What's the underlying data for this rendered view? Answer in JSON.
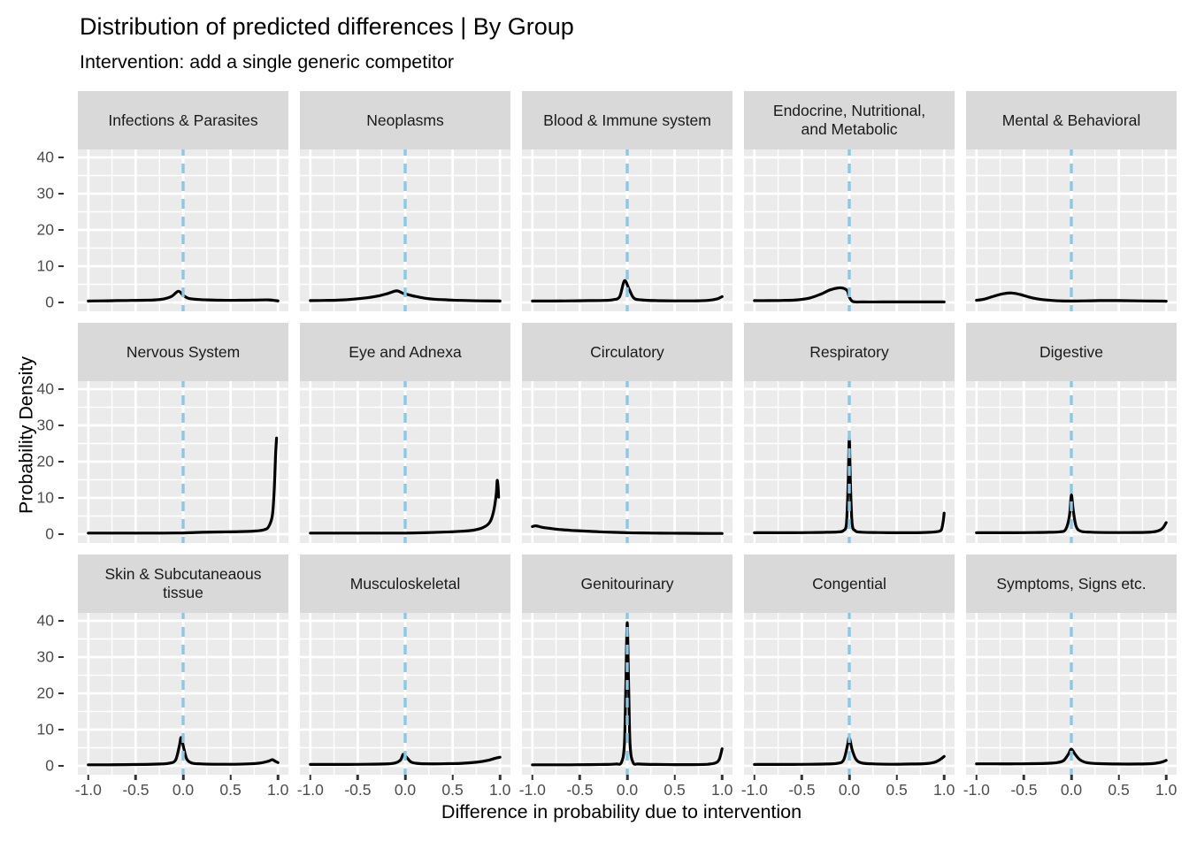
{
  "header": {
    "title": "Distribution of predicted differences | By Group",
    "subtitle": "Intervention: add a single generic competitor"
  },
  "axes": {
    "x_title": "Difference in probability due to intervention",
    "y_title": "Probability Density",
    "x_ticks": [
      {
        "label": "-1.0",
        "value": -1.0
      },
      {
        "label": "-0.5",
        "value": -0.5
      },
      {
        "label": "0.0",
        "value": 0.0
      },
      {
        "label": "0.5",
        "value": 0.5
      },
      {
        "label": "1.0",
        "value": 1.0
      }
    ],
    "y_ticks": [
      {
        "label": "0",
        "value": 0
      },
      {
        "label": "10",
        "value": 10
      },
      {
        "label": "20",
        "value": 20
      },
      {
        "label": "30",
        "value": 30
      },
      {
        "label": "40",
        "value": 40
      }
    ],
    "x_minor": [
      -0.75,
      -0.25,
      0.25,
      0.75
    ],
    "y_minor": [
      5,
      15,
      25,
      35
    ]
  },
  "style": {
    "panel_bg": "#EBEBEB",
    "strip_bg": "#D9D9D9",
    "grid_color": "#FFFFFF",
    "curve_color": "#000000",
    "vline_color": "#8AC8E8",
    "axis_text_color": "#4D4D4D",
    "tick_mark_color": "#333333",
    "strip_text_color": "#1A1A1A"
  },
  "chart_data": {
    "type": "line",
    "kind": "faceted density curves, 3 rows x 5 columns small multiples",
    "title": "Distribution of predicted differences | By Group",
    "subtitle": "Intervention: add a single generic competitor",
    "xlabel": "Difference in probability due to intervention",
    "ylabel": "Probability Density",
    "xlim": [
      -1,
      1
    ],
    "ylim": [
      0,
      40
    ],
    "grid": true,
    "reference_vline_x": 0,
    "facets": [
      {
        "title": "Infections & Parasites",
        "points": [
          [
            -1,
            0.4
          ],
          [
            -0.85,
            0.45
          ],
          [
            -0.7,
            0.5
          ],
          [
            -0.55,
            0.55
          ],
          [
            -0.4,
            0.6
          ],
          [
            -0.3,
            0.7
          ],
          [
            -0.2,
            1.0
          ],
          [
            -0.12,
            1.7
          ],
          [
            -0.05,
            3.1
          ],
          [
            0,
            2.0
          ],
          [
            0.05,
            1.2
          ],
          [
            0.12,
            0.9
          ],
          [
            0.25,
            0.7
          ],
          [
            0.4,
            0.6
          ],
          [
            0.6,
            0.6
          ],
          [
            0.75,
            0.65
          ],
          [
            0.9,
            0.7
          ],
          [
            1,
            0.45
          ]
        ]
      },
      {
        "title": "Neoplasms",
        "points": [
          [
            -1,
            0.5
          ],
          [
            -0.85,
            0.55
          ],
          [
            -0.7,
            0.65
          ],
          [
            -0.55,
            0.9
          ],
          [
            -0.4,
            1.3
          ],
          [
            -0.28,
            1.8
          ],
          [
            -0.18,
            2.5
          ],
          [
            -0.09,
            3.2
          ],
          [
            -0.02,
            2.5
          ],
          [
            0.04,
            2.1
          ],
          [
            0.1,
            1.7
          ],
          [
            0.2,
            1.2
          ],
          [
            0.3,
            0.9
          ],
          [
            0.45,
            0.7
          ],
          [
            0.6,
            0.55
          ],
          [
            0.8,
            0.45
          ],
          [
            1,
            0.4
          ]
        ]
      },
      {
        "title": "Blood & Immune system",
        "points": [
          [
            -1,
            0.4
          ],
          [
            -0.8,
            0.4
          ],
          [
            -0.6,
            0.45
          ],
          [
            -0.4,
            0.5
          ],
          [
            -0.25,
            0.55
          ],
          [
            -0.15,
            0.75
          ],
          [
            -0.08,
            1.6
          ],
          [
            -0.03,
            6.0
          ],
          [
            0.02,
            3.6
          ],
          [
            0.07,
            1.2
          ],
          [
            0.15,
            0.7
          ],
          [
            0.3,
            0.5
          ],
          [
            0.5,
            0.45
          ],
          [
            0.7,
            0.45
          ],
          [
            0.85,
            0.55
          ],
          [
            0.95,
            1.0
          ],
          [
            1,
            1.6
          ]
        ]
      },
      {
        "title": "Endocrine, Nutritional,\nand Metabolic",
        "points": [
          [
            -1,
            0.5
          ],
          [
            -0.85,
            0.5
          ],
          [
            -0.7,
            0.55
          ],
          [
            -0.55,
            0.7
          ],
          [
            -0.42,
            1.2
          ],
          [
            -0.3,
            2.3
          ],
          [
            -0.2,
            3.5
          ],
          [
            -0.12,
            4.0
          ],
          [
            -0.06,
            3.9
          ],
          [
            -0.02,
            3.2
          ],
          [
            0,
            1.5
          ],
          [
            0.04,
            0.25
          ],
          [
            0.15,
            0.15
          ],
          [
            0.35,
            0.15
          ],
          [
            0.6,
            0.15
          ],
          [
            0.8,
            0.15
          ],
          [
            1,
            0.15
          ]
        ]
      },
      {
        "title": "Mental & Behavioral",
        "points": [
          [
            -1,
            0.6
          ],
          [
            -0.92,
            0.9
          ],
          [
            -0.82,
            1.7
          ],
          [
            -0.72,
            2.4
          ],
          [
            -0.63,
            2.6
          ],
          [
            -0.54,
            2.2
          ],
          [
            -0.45,
            1.5
          ],
          [
            -0.36,
            1.0
          ],
          [
            -0.25,
            0.65
          ],
          [
            -0.12,
            0.45
          ],
          [
            0,
            0.4
          ],
          [
            0.15,
            0.45
          ],
          [
            0.3,
            0.5
          ],
          [
            0.5,
            0.5
          ],
          [
            0.7,
            0.45
          ],
          [
            0.85,
            0.4
          ],
          [
            1,
            0.35
          ]
        ]
      },
      {
        "title": "Nervous System",
        "points": [
          [
            -1,
            0.3
          ],
          [
            -0.8,
            0.3
          ],
          [
            -0.6,
            0.3
          ],
          [
            -0.4,
            0.3
          ],
          [
            -0.2,
            0.3
          ],
          [
            0,
            0.35
          ],
          [
            0.2,
            0.5
          ],
          [
            0.4,
            0.6
          ],
          [
            0.6,
            0.7
          ],
          [
            0.75,
            0.85
          ],
          [
            0.85,
            1.2
          ],
          [
            0.9,
            2.0
          ],
          [
            0.94,
            5.0
          ],
          [
            0.96,
            12
          ],
          [
            0.975,
            22
          ],
          [
            0.985,
            26.5
          ]
        ]
      },
      {
        "title": "Eye and Adnexa",
        "points": [
          [
            -1,
            0.3
          ],
          [
            -0.8,
            0.3
          ],
          [
            -0.6,
            0.3
          ],
          [
            -0.4,
            0.3
          ],
          [
            -0.2,
            0.3
          ],
          [
            0,
            0.3
          ],
          [
            0.2,
            0.4
          ],
          [
            0.4,
            0.55
          ],
          [
            0.6,
            0.8
          ],
          [
            0.72,
            1.1
          ],
          [
            0.82,
            1.8
          ],
          [
            0.89,
            3.2
          ],
          [
            0.93,
            6
          ],
          [
            0.96,
            11
          ],
          [
            0.97,
            14.8
          ],
          [
            0.98,
            13
          ],
          [
            0.985,
            10.2
          ]
        ]
      },
      {
        "title": "Circulatory",
        "points": [
          [
            -1,
            2.1
          ],
          [
            -0.96,
            2.3
          ],
          [
            -0.9,
            1.9
          ],
          [
            -0.82,
            1.6
          ],
          [
            -0.72,
            1.3
          ],
          [
            -0.6,
            1.05
          ],
          [
            -0.45,
            0.85
          ],
          [
            -0.3,
            0.65
          ],
          [
            -0.15,
            0.5
          ],
          [
            0,
            0.4
          ],
          [
            0.15,
            0.33
          ],
          [
            0.35,
            0.28
          ],
          [
            0.55,
            0.25
          ],
          [
            0.75,
            0.22
          ],
          [
            0.9,
            0.2
          ],
          [
            1,
            0.2
          ]
        ]
      },
      {
        "title": "Respiratory",
        "points": [
          [
            -1,
            0.4
          ],
          [
            -0.8,
            0.4
          ],
          [
            -0.6,
            0.4
          ],
          [
            -0.4,
            0.45
          ],
          [
            -0.25,
            0.5
          ],
          [
            -0.12,
            0.6
          ],
          [
            -0.06,
            1.0
          ],
          [
            -0.03,
            3
          ],
          [
            -0.012,
            14
          ],
          [
            0,
            26.5
          ],
          [
            0.012,
            14
          ],
          [
            0.03,
            3
          ],
          [
            0.06,
            1.0
          ],
          [
            0.12,
            0.55
          ],
          [
            0.3,
            0.45
          ],
          [
            0.5,
            0.4
          ],
          [
            0.7,
            0.4
          ],
          [
            0.85,
            0.5
          ],
          [
            0.93,
            0.7
          ],
          [
            0.97,
            1.2
          ],
          [
            0.99,
            3.5
          ],
          [
            1,
            5.8
          ]
        ]
      },
      {
        "title": "Digestive",
        "points": [
          [
            -1,
            0.4
          ],
          [
            -0.8,
            0.4
          ],
          [
            -0.6,
            0.4
          ],
          [
            -0.4,
            0.45
          ],
          [
            -0.25,
            0.5
          ],
          [
            -0.12,
            0.65
          ],
          [
            -0.06,
            1.3
          ],
          [
            -0.02,
            5
          ],
          [
            0,
            10.8
          ],
          [
            0.02,
            6.5
          ],
          [
            0.05,
            2.2
          ],
          [
            0.1,
            0.8
          ],
          [
            0.2,
            0.55
          ],
          [
            0.4,
            0.45
          ],
          [
            0.6,
            0.45
          ],
          [
            0.8,
            0.5
          ],
          [
            0.9,
            0.8
          ],
          [
            0.96,
            1.6
          ],
          [
            1,
            3.2
          ]
        ]
      },
      {
        "title": "Skin & Subcutaneaous\ntissue",
        "points": [
          [
            -1,
            0.3
          ],
          [
            -0.8,
            0.3
          ],
          [
            -0.6,
            0.35
          ],
          [
            -0.4,
            0.4
          ],
          [
            -0.25,
            0.5
          ],
          [
            -0.15,
            0.7
          ],
          [
            -0.08,
            1.6
          ],
          [
            -0.04,
            5.5
          ],
          [
            -0.02,
            7.8
          ],
          [
            0.01,
            4.5
          ],
          [
            0.04,
            1.8
          ],
          [
            0.09,
            0.8
          ],
          [
            0.18,
            0.55
          ],
          [
            0.35,
            0.45
          ],
          [
            0.55,
            0.45
          ],
          [
            0.7,
            0.55
          ],
          [
            0.82,
            0.8
          ],
          [
            0.9,
            1.3
          ],
          [
            0.94,
            1.7
          ],
          [
            0.97,
            1.3
          ],
          [
            1,
            0.9
          ]
        ]
      },
      {
        "title": "Musculoskeletal",
        "points": [
          [
            -1,
            0.4
          ],
          [
            -0.8,
            0.4
          ],
          [
            -0.6,
            0.4
          ],
          [
            -0.4,
            0.45
          ],
          [
            -0.25,
            0.5
          ],
          [
            -0.12,
            0.7
          ],
          [
            -0.05,
            1.6
          ],
          [
            -0.02,
            3.2
          ],
          [
            0.02,
            2.2
          ],
          [
            0.06,
            1.1
          ],
          [
            0.12,
            0.7
          ],
          [
            0.25,
            0.55
          ],
          [
            0.45,
            0.6
          ],
          [
            0.6,
            0.7
          ],
          [
            0.75,
            1.0
          ],
          [
            0.87,
            1.5
          ],
          [
            0.95,
            2.1
          ],
          [
            1,
            2.4
          ]
        ]
      },
      {
        "title": "Genitourinary",
        "points": [
          [
            -1,
            0.3
          ],
          [
            -0.8,
            0.3
          ],
          [
            -0.6,
            0.3
          ],
          [
            -0.4,
            0.35
          ],
          [
            -0.25,
            0.4
          ],
          [
            -0.12,
            0.5
          ],
          [
            -0.06,
            1.0
          ],
          [
            -0.03,
            6
          ],
          [
            -0.015,
            22
          ],
          [
            0,
            39.5
          ],
          [
            0.015,
            22
          ],
          [
            0.03,
            6
          ],
          [
            0.06,
            1.0
          ],
          [
            0.12,
            0.5
          ],
          [
            0.3,
            0.4
          ],
          [
            0.5,
            0.35
          ],
          [
            0.7,
            0.35
          ],
          [
            0.85,
            0.45
          ],
          [
            0.93,
            0.8
          ],
          [
            0.97,
            1.8
          ],
          [
            1,
            4.7
          ]
        ]
      },
      {
        "title": "Congential",
        "points": [
          [
            -1,
            0.4
          ],
          [
            -0.8,
            0.4
          ],
          [
            -0.6,
            0.4
          ],
          [
            -0.4,
            0.45
          ],
          [
            -0.25,
            0.5
          ],
          [
            -0.12,
            0.7
          ],
          [
            -0.06,
            1.6
          ],
          [
            -0.02,
            5.5
          ],
          [
            0,
            7.8
          ],
          [
            0.03,
            4.5
          ],
          [
            0.07,
            1.8
          ],
          [
            0.13,
            0.8
          ],
          [
            0.25,
            0.55
          ],
          [
            0.45,
            0.45
          ],
          [
            0.65,
            0.5
          ],
          [
            0.8,
            0.6
          ],
          [
            0.9,
            1.0
          ],
          [
            0.96,
            1.8
          ],
          [
            1,
            2.6
          ]
        ]
      },
      {
        "title": "Symptoms, Signs etc.",
        "points": [
          [
            -1,
            0.55
          ],
          [
            -0.8,
            0.55
          ],
          [
            -0.6,
            0.55
          ],
          [
            -0.4,
            0.6
          ],
          [
            -0.25,
            0.7
          ],
          [
            -0.15,
            0.9
          ],
          [
            -0.08,
            1.5
          ],
          [
            -0.03,
            3.3
          ],
          [
            0,
            4.6
          ],
          [
            0.04,
            3.2
          ],
          [
            0.09,
            1.7
          ],
          [
            0.16,
            0.9
          ],
          [
            0.3,
            0.6
          ],
          [
            0.5,
            0.5
          ],
          [
            0.7,
            0.5
          ],
          [
            0.85,
            0.6
          ],
          [
            0.93,
            0.9
          ],
          [
            0.97,
            1.2
          ],
          [
            1,
            1.5
          ]
        ]
      }
    ]
  }
}
